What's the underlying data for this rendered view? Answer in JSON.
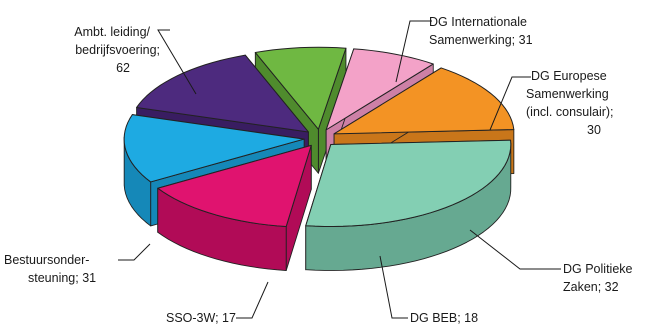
{
  "chart_data": {
    "type": "pie",
    "variant": "exploded 3d pie",
    "title": "",
    "slices": [
      {
        "label_lines": [
          "DG Internationale",
          "Samenwerking; 31"
        ],
        "category": "DG Internationale Samenwerking",
        "value": 31,
        "color": "#e0136f",
        "side_color": "#b10b57"
      },
      {
        "label_lines": [
          "DG Europese",
          "Samenwerking",
          "(incl. consulair);",
          "30"
        ],
        "category": "DG Europese Samenwerking (incl. consulair)",
        "value": 30,
        "color": "#1eaae2",
        "side_color": "#1588b8"
      },
      {
        "label_lines": [
          "DG Politieke",
          "Zaken; 32"
        ],
        "category": "DG Politieke Zaken",
        "value": 32,
        "color": "#4d2a7e",
        "side_color": "#391d61"
      },
      {
        "label_lines": [
          "DG BEB; 18"
        ],
        "category": "DG BEB",
        "value": 18,
        "color": "#6fb842",
        "side_color": "#4f8b2d"
      },
      {
        "label_lines": [
          "SSO-3W; 17"
        ],
        "category": "SSO-3W",
        "value": 17,
        "color": "#f3a2c8",
        "side_color": "#cd80a6"
      },
      {
        "label_lines": [
          "Bestuursonder-",
          "steuning; 31"
        ],
        "category": "Bestuursondersteuning",
        "value": 31,
        "color": "#f39324",
        "side_color": "#c9761a"
      },
      {
        "label_lines": [
          "Ambt. leiding/",
          "bedrijfsvoering;",
          "62"
        ],
        "category": "Ambt. leiding/bedrijfsvoering",
        "value": 62,
        "color": "#83cfb3",
        "side_color": "#66a991"
      }
    ]
  }
}
